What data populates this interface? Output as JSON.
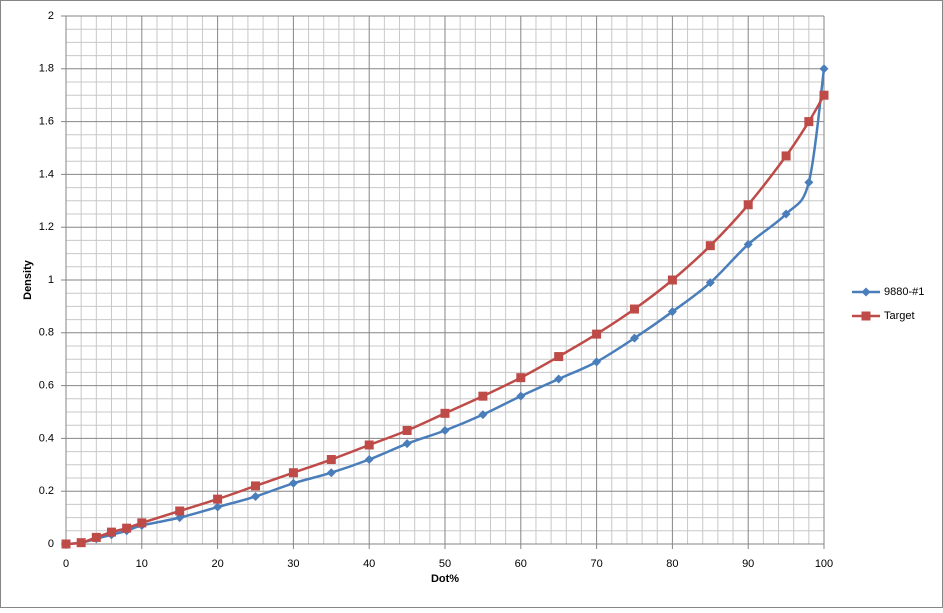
{
  "chart_data": {
    "type": "line",
    "x_label": "Dot%",
    "y_label": "Density",
    "xlim": [
      0,
      100
    ],
    "xticks": [
      0,
      10,
      20,
      30,
      40,
      50,
      60,
      70,
      80,
      90,
      100
    ],
    "ylim": [
      0,
      2
    ],
    "yticks": [
      0,
      0.2,
      0.4,
      0.6,
      0.8,
      1,
      1.2,
      1.4,
      1.6,
      1.8,
      2
    ],
    "grid": true,
    "smooth": true,
    "legend": "right",
    "series": [
      {
        "name": "9880-#1",
        "color": "#4a7ebb",
        "marker": "diamond",
        "x": [
          0,
          2,
          4,
          6,
          8,
          10,
          15,
          20,
          25,
          30,
          35,
          40,
          45,
          50,
          55,
          60,
          65,
          70,
          75,
          80,
          85,
          90,
          95,
          98,
          100
        ],
        "values": [
          0,
          0.005,
          0.02,
          0.035,
          0.05,
          0.07,
          0.1,
          0.14,
          0.18,
          0.23,
          0.27,
          0.32,
          0.38,
          0.43,
          0.49,
          0.56,
          0.625,
          0.69,
          0.78,
          0.88,
          0.99,
          1.135,
          1.25,
          1.37,
          1.8
        ]
      },
      {
        "name": "Target",
        "color": "#be4b48",
        "marker": "square",
        "x": [
          0,
          2,
          4,
          6,
          8,
          10,
          15,
          20,
          25,
          30,
          35,
          40,
          45,
          50,
          55,
          60,
          65,
          70,
          75,
          80,
          85,
          90,
          95,
          98,
          100
        ],
        "values": [
          0,
          0.005,
          0.025,
          0.045,
          0.06,
          0.08,
          0.125,
          0.17,
          0.22,
          0.27,
          0.32,
          0.375,
          0.43,
          0.495,
          0.56,
          0.63,
          0.71,
          0.795,
          0.89,
          1.0,
          1.13,
          1.285,
          1.47,
          1.6,
          1.7
        ]
      }
    ]
  }
}
